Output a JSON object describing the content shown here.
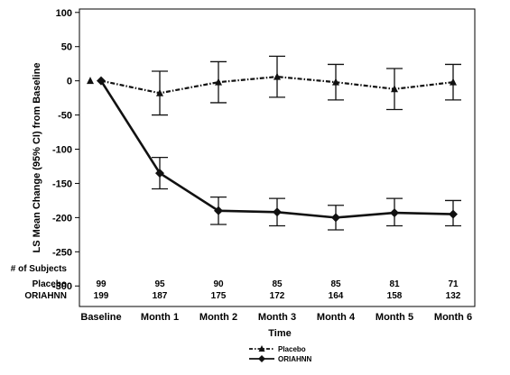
{
  "chart_data": {
    "type": "line",
    "title": "",
    "xlabel": "Time",
    "ylabel": "LS Mean Change (95% CI) from Baseline",
    "categories": [
      "Baseline",
      "Month 1",
      "Month 2",
      "Month 3",
      "Month 4",
      "Month 5",
      "Month 6"
    ],
    "ylim": [
      -330,
      105
    ],
    "yticks": [
      100,
      50,
      0,
      -50,
      -100,
      -150,
      -200,
      -250,
      -300
    ],
    "ytick_labels": [
      "100",
      "50",
      "0",
      "-50",
      "-100",
      "-150",
      "-200",
      "-250",
      "-300"
    ],
    "series": [
      {
        "name": "Placebo",
        "marker": "triangle",
        "line_style": "dash-dot",
        "color": "#111111",
        "values": [
          0,
          -18,
          -2,
          6,
          -2,
          -12,
          -2
        ],
        "ci_low": [
          null,
          -50,
          -32,
          -24,
          -28,
          -42,
          -28
        ],
        "ci_high": [
          null,
          14,
          28,
          36,
          24,
          18,
          24
        ]
      },
      {
        "name": "ORIAHNN",
        "marker": "diamond",
        "line_style": "solid",
        "color": "#111111",
        "values": [
          0,
          -135,
          -190,
          -192,
          -200,
          -193,
          -195
        ],
        "ci_low": [
          null,
          -158,
          -210,
          -212,
          -218,
          -212,
          -212
        ],
        "ci_high": [
          null,
          -112,
          -170,
          -172,
          -182,
          -172,
          -175
        ]
      }
    ],
    "subjects": {
      "header": "# of Subjects",
      "rows": [
        {
          "label": "Placebo",
          "counts": [
            "99",
            "95",
            "90",
            "85",
            "85",
            "81",
            "71"
          ]
        },
        {
          "label": "ORIAHNN",
          "counts": [
            "199",
            "187",
            "175",
            "172",
            "164",
            "158",
            "132"
          ]
        }
      ]
    },
    "legend": {
      "placement": "bottom-center",
      "entries": [
        "Placebo",
        "ORIAHNN"
      ]
    },
    "grid": false
  }
}
